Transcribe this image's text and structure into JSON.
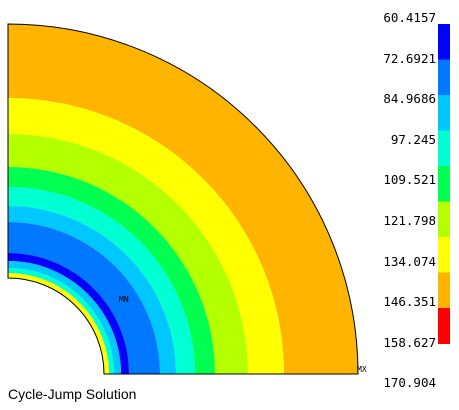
{
  "caption": "Cycle-Jump Solution",
  "markers": {
    "min": "MN",
    "max": "MX"
  },
  "legend": {
    "values": [
      "60.4157",
      "72.6921",
      "84.9686",
      "97.245",
      "109.521",
      "121.798",
      "134.074",
      "146.351",
      "158.627",
      "170.904"
    ],
    "colors": [
      "#0000ff",
      "#0078ff",
      "#00c8ff",
      "#00ffd2",
      "#00ff50",
      "#b4ff00",
      "#ffff00",
      "#ffb400",
      "#ff0000"
    ]
  },
  "contour_bands": [
    {
      "color": "#ffff00"
    },
    {
      "color": "#00ffd2"
    },
    {
      "color": "#00c8ff"
    },
    {
      "color": "#0000ff"
    },
    {
      "color": "#0078ff"
    },
    {
      "color": "#00c8ff"
    },
    {
      "color": "#00ffd2"
    },
    {
      "color": "#00ff50"
    },
    {
      "color": "#b4ff00"
    },
    {
      "color": "#ffff00"
    },
    {
      "color": "#ffb400"
    },
    {
      "color": "#ff0000"
    }
  ]
}
